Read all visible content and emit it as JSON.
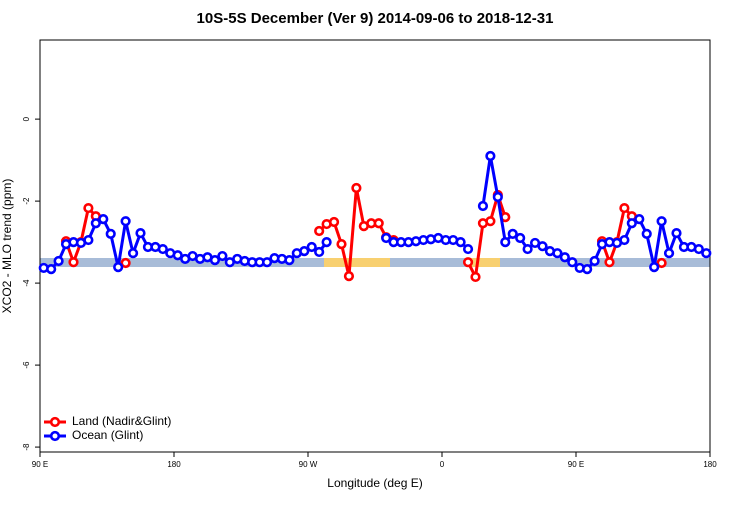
{
  "chart_data": {
    "type": "line",
    "title": "10S-5S December (Ver 9)   2014-09-06 to 2018-12-31",
    "xlabel": "Longitude (deg E)",
    "ylabel": "XCO2 - MLO trend (ppm)",
    "xlim": [
      90,
      540
    ],
    "xticks": [
      {
        "value": 90,
        "label": "90 E"
      },
      180,
      {
        "value": 270,
        "label": "90 W"
      },
      {
        "value": 360,
        "label": "0"
      },
      {
        "value": 450,
        "label": "90 E"
      },
      {
        "value": 540,
        "label": "180"
      }
    ],
    "ylim": [
      -8.12,
      1.93
    ],
    "yticks": [
      -8,
      -6,
      -4,
      -2,
      0
    ],
    "legend": "bottom-left",
    "x": [
      92.5,
      97.5,
      102.5,
      107.5,
      112.5,
      117.5,
      122.5,
      127.5,
      132.5,
      137.5,
      142.5,
      147.5,
      152.5,
      157.5,
      162.5,
      167.5,
      172.5,
      177.5,
      182.5,
      187.5,
      192.5,
      197.5,
      202.5,
      207.5,
      212.5,
      217.5,
      222.5,
      227.5,
      232.5,
      237.5,
      242.5,
      247.5,
      252.5,
      257.5,
      262.5,
      267.5,
      272.5,
      277.5,
      282.5,
      287.5,
      292.5,
      297.5,
      302.5,
      307.5,
      312.5,
      317.5,
      322.5,
      327.5,
      332.5,
      337.5,
      342.5,
      347.5,
      352.5,
      357.5,
      362.5,
      367.5,
      372.5,
      377.5,
      382.5,
      387.5,
      392.5,
      397.5,
      402.5,
      407.5,
      412.5,
      417.5,
      422.5,
      427.5,
      432.5,
      437.5,
      442.5,
      447.5,
      452.5,
      457.5,
      462.5,
      467.5,
      472.5,
      477.5,
      482.5,
      487.5,
      492.5,
      497.5,
      502.5,
      507.5,
      512.5,
      517.5,
      522.5,
      527.5,
      532.5,
      537.5
    ],
    "series": [
      {
        "name": "Land (Nadir&Glint)",
        "color": "#ff0000",
        "values": [
          null,
          null,
          null,
          -2.98,
          -3.49,
          -3.0,
          -2.17,
          -2.37,
          null,
          null,
          null,
          -3.51,
          null,
          null,
          null,
          null,
          null,
          null,
          null,
          null,
          null,
          null,
          null,
          null,
          null,
          null,
          null,
          null,
          null,
          null,
          null,
          null,
          null,
          null,
          null,
          null,
          null,
          -2.73,
          -2.56,
          -2.51,
          -3.05,
          -3.83,
          -1.68,
          -2.61,
          -2.54,
          -2.54,
          -2.88,
          -2.95,
          null,
          null,
          null,
          null,
          null,
          null,
          null,
          null,
          null,
          -3.49,
          -3.85,
          -2.54,
          -2.49,
          -1.85,
          -2.39,
          null,
          null,
          null,
          null,
          null,
          null,
          null,
          null,
          null,
          null,
          null,
          null,
          -2.98,
          -3.49,
          -3.0,
          -2.17,
          -2.37,
          null,
          null,
          null,
          -3.51,
          null,
          null,
          null,
          null,
          null,
          null
        ]
      },
      {
        "name": "Ocean (Glint)",
        "color": "#0000ff",
        "values": [
          -3.63,
          -3.66,
          -3.46,
          -3.05,
          -3.0,
          -3.02,
          -2.95,
          -2.54,
          -2.44,
          -2.8,
          -3.61,
          -2.49,
          -3.27,
          -2.78,
          -3.12,
          -3.12,
          -3.17,
          -3.27,
          -3.32,
          -3.41,
          -3.34,
          -3.41,
          -3.37,
          -3.44,
          -3.34,
          -3.49,
          -3.41,
          -3.46,
          -3.49,
          -3.49,
          -3.49,
          -3.39,
          -3.41,
          -3.44,
          -3.27,
          -3.22,
          -3.12,
          -3.24,
          -3.0,
          null,
          null,
          null,
          null,
          null,
          null,
          null,
          -2.9,
          -3.0,
          -3.0,
          -3.0,
          -2.98,
          -2.95,
          -2.93,
          -2.9,
          -2.95,
          -2.95,
          -3.0,
          -3.17,
          null,
          -2.12,
          -0.9,
          -1.9,
          -3.0,
          -2.8,
          -2.9,
          -3.17,
          -3.02,
          -3.1,
          -3.22,
          -3.27,
          -3.37,
          -3.49,
          -3.63,
          -3.66,
          -3.46,
          -3.05,
          -3.0,
          -3.02,
          -2.95,
          -2.54,
          -2.44,
          -2.8,
          -3.61,
          -2.49,
          -3.27,
          -2.78,
          -3.12,
          -3.12,
          -3.17,
          -3.27
        ]
      }
    ]
  }
}
